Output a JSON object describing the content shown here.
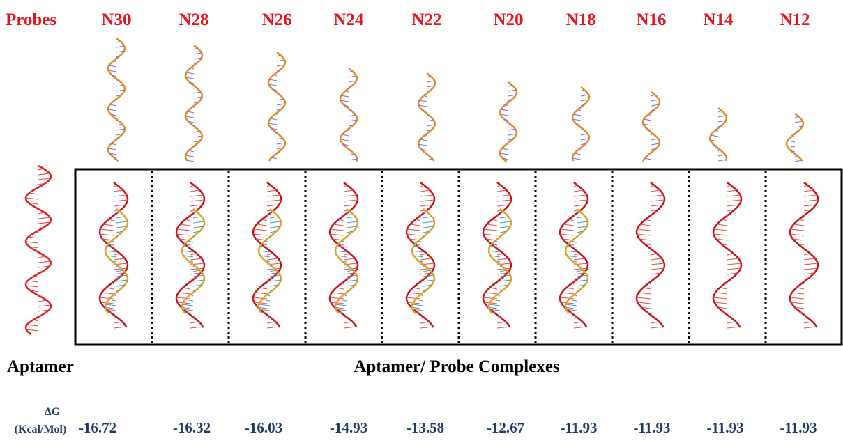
{
  "header": {
    "label": "Probes",
    "probes": [
      "N30",
      "N28",
      "N26",
      "N24",
      "N22",
      "N20",
      "N18",
      "N16",
      "N14",
      "N12"
    ]
  },
  "aptamer_label": "Aptamer",
  "complexes_label": "Aptamer/ Probe Complexes",
  "delta_g": {
    "symbol": "ΔG",
    "unit": "(Kcal/Mol)",
    "values": [
      -16.72,
      -16.32,
      -16.03,
      -14.93,
      -13.58,
      -12.67,
      -11.93,
      -11.93,
      -11.93,
      -11.93
    ]
  }
}
